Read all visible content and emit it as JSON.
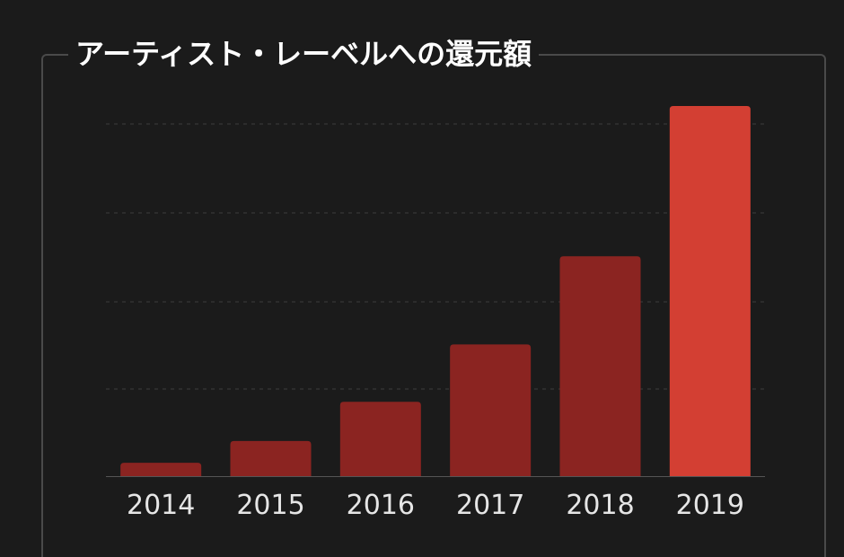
{
  "header": {
    "title": "アーティスト・レーベルへの還元額"
  },
  "colors": {
    "background": "#1b1b1b",
    "bar": "#8b2421",
    "bar_highlight": "#d33f33",
    "grid": "#3d3d3d",
    "frame": "#4a4a4a",
    "text": "#e6e6e6"
  },
  "chart_data": {
    "type": "bar",
    "title": "アーティスト・レーベルへの還元額",
    "categories": [
      "2014",
      "2015",
      "2016",
      "2017",
      "2018",
      "2019"
    ],
    "values": [
      3.6,
      9.5,
      20.1,
      35.6,
      59.4,
      100
    ],
    "highlight_index": 5,
    "ylim": [
      0,
      100
    ],
    "grid": true,
    "xlabel": "",
    "ylabel": ""
  }
}
